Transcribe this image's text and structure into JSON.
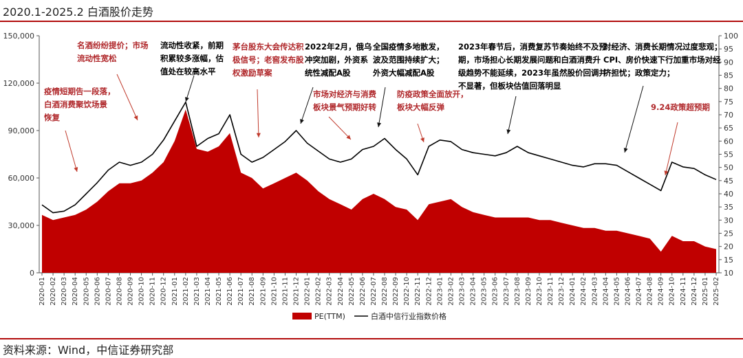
{
  "page": {
    "title": "2020.1-2025.2 白酒股价走势",
    "source": "资料来源：Wind，中信证券研究部"
  },
  "chart_data": {
    "type": "line",
    "title": "2020.1-2025.2 白酒股价走势",
    "x": [
      "2020-01",
      "2020-02",
      "2020-03",
      "2020-04",
      "2020-05",
      "2020-06",
      "2020-07",
      "2020-08",
      "2020-09",
      "2020-10",
      "2020-11",
      "2020-12",
      "2021-01",
      "2021-02",
      "2021-03",
      "2021-04",
      "2021-05",
      "2021-06",
      "2021-07",
      "2021-08",
      "2021-09",
      "2021-10",
      "2021-11",
      "2021-12",
      "2022-01",
      "2022-02",
      "2022-03",
      "2022-04",
      "2022-05",
      "2022-06",
      "2022-07",
      "2022-08",
      "2022-09",
      "2022-10",
      "2022-11",
      "2022-12",
      "2023-01",
      "2023-02",
      "2023-03",
      "2023-04",
      "2023-05",
      "2023-06",
      "2023-07",
      "2023-08",
      "2023-09",
      "2023-10",
      "2023-11",
      "2023-12",
      "2024-01",
      "2024-02",
      "2024-03",
      "2024-04",
      "2024-05",
      "2024-06",
      "2024-07",
      "2024-08",
      "2024-09",
      "2024-10",
      "2024-11",
      "2024-12",
      "2025-01",
      "2025-02"
    ],
    "left_axis": {
      "ylim": [
        0,
        150000
      ],
      "ticks": [
        "0",
        "30,000",
        "60,000",
        "90,000",
        "120,000",
        "150,000"
      ]
    },
    "right_axis": {
      "ylim": [
        10,
        100
      ],
      "ticks": [
        "10",
        "15",
        "20",
        "25",
        "30",
        "35",
        "40",
        "45",
        "50",
        "55",
        "60",
        "65",
        "70",
        "75",
        "80",
        "85",
        "90",
        "95",
        "100"
      ]
    },
    "series": [
      {
        "name": "PE(TTM)",
        "type": "area",
        "axis": "right",
        "color": "#c00000",
        "values": [
          32,
          30,
          31,
          32,
          34,
          37,
          41,
          44,
          44,
          45,
          48,
          52,
          60,
          72,
          57,
          56,
          58,
          63,
          48,
          46,
          42,
          44,
          46,
          48,
          45,
          41,
          38,
          36,
          34,
          38,
          40,
          38,
          35,
          34,
          30,
          36,
          37,
          38,
          35,
          33,
          32,
          31,
          31,
          31,
          31,
          30,
          30,
          29,
          28,
          27,
          27,
          26,
          26,
          25,
          24,
          23,
          18,
          24,
          22,
          22,
          20,
          19
        ]
      },
      {
        "name": "白酒中信行业指数价格",
        "type": "line",
        "axis": "left",
        "color": "#000000",
        "values": [
          43000,
          38000,
          39000,
          43000,
          50000,
          57000,
          65000,
          70000,
          68000,
          70000,
          75000,
          84000,
          96000,
          108000,
          80000,
          85000,
          88000,
          100000,
          75000,
          70000,
          73000,
          78000,
          83000,
          90000,
          82000,
          77000,
          72000,
          70000,
          72000,
          78000,
          80000,
          85000,
          78000,
          72000,
          62000,
          80000,
          84000,
          83000,
          78000,
          76000,
          75000,
          74000,
          76000,
          80000,
          76000,
          74000,
          72000,
          70000,
          68000,
          67000,
          69000,
          69000,
          68000,
          64000,
          60000,
          56000,
          52000,
          70000,
          67000,
          66000,
          62000,
          59000
        ]
      }
    ],
    "annotations": [
      {
        "text": "名酒纷纷提价；市场流动性宽松",
        "color": "#b0282b",
        "lines": [
          "名酒纷纷提价；市场",
          "流动性宽松"
        ]
      },
      {
        "text": "疫情短期告一段落，白酒消费聚饮场景恢复",
        "color": "#b0282b",
        "lines": [
          "疫情短期告一段落，",
          "白酒消费聚饮场景",
          "恢复"
        ]
      },
      {
        "text": "流动性收紧，前期积累较多涨幅，估值处在较高水平",
        "color": "#000000",
        "lines": [
          "流动性收紧，前期",
          "积累较多涨幅，估",
          "值处在较高水平"
        ]
      },
      {
        "text": "茅台股东大会传达积极信号；老窖发布股权激励草案",
        "color": "#b0282b",
        "lines": [
          "茅台股东大会传达积",
          "极信号；老窖发布股",
          "权激励草案"
        ]
      },
      {
        "text": "2022年2月，俄乌冲突加剧，外资系统性减配A股",
        "color": "#000000",
        "lines": [
          "2022年2月，俄乌",
          "冲突加剧，外资系",
          "统性减配A股"
        ]
      },
      {
        "text": "市场对经济与消费板块景气预期好转",
        "color": "#b0282b",
        "lines": [
          "市场对经济与消费",
          "板块景气预期好转"
        ]
      },
      {
        "text": "全国疫情多地散发，波及范围持续扩大；外资大幅减配A股",
        "color": "#000000",
        "lines": [
          "全国疫情多地散发，",
          "波及范围持续扩大；",
          "外资大幅减配A股"
        ]
      },
      {
        "text": "防疫政策全面放开，板块大幅反弹",
        "color": "#b0282b",
        "lines": [
          "防疫政策全面放开，",
          "板块大幅反弹"
        ]
      },
      {
        "text": "2023年春节后，消费复苏节奏始终不及预期，市场担心长期发展问题和白酒消费升级趋势不能延续，2023年虽然股价回调并不显著，但板块估值回落明显",
        "color": "#000000",
        "lines": [
          "2023年春节后，消费复苏节奏始终不及预",
          "期，市场担心长期发展问题和白酒消费升",
          "级趋势不能延续，2023年虽然股价回调并",
          "不显著，但板块估值回落明显"
        ]
      },
      {
        "text": "对经济、消费长期情况过度悲观；CPI、房价快速下行加重市场对经济担忧；政策定力；",
        "color": "#000000",
        "lines": [
          "对经济、消费长期情况过度悲观；",
          "CPI、房价快速下行加重市场对经",
          "济担忧；政策定力；"
        ]
      },
      {
        "text": "9.24政策超预期",
        "color": "#b0282b",
        "lines": [
          "9.24政策超预期"
        ]
      }
    ],
    "legend": {
      "placement": "bottom-center"
    },
    "grid": false
  }
}
